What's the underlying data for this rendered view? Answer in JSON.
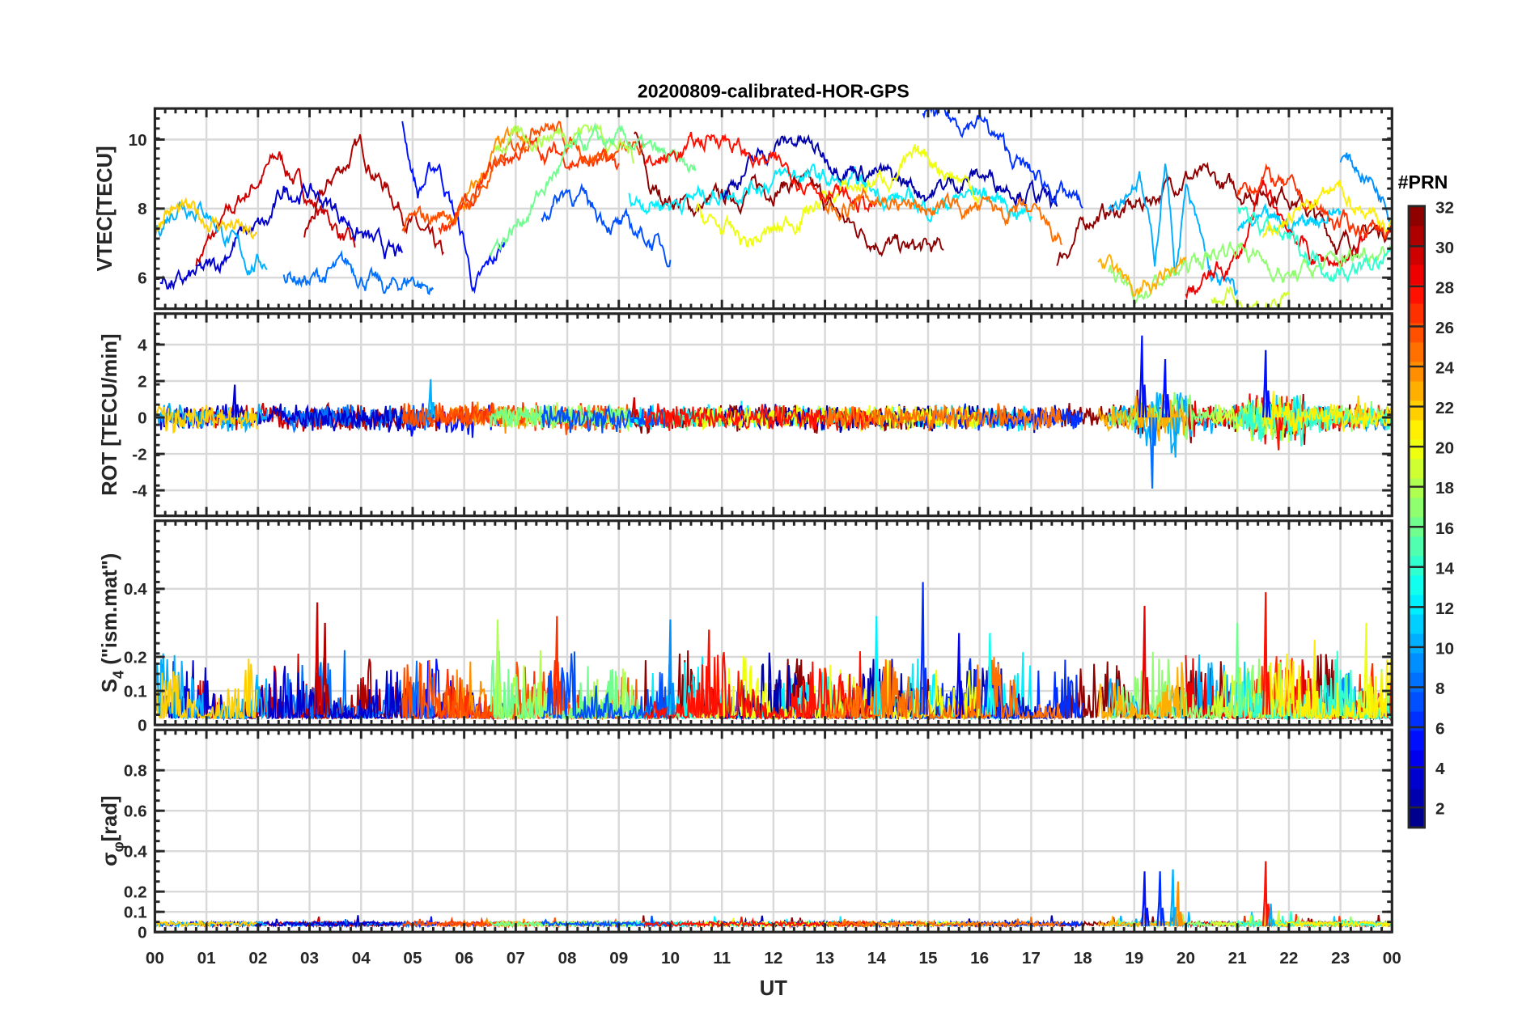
{
  "chart_data": {
    "type": "line",
    "title": "20200809-calibrated-HOR-GPS",
    "xlabel": "UT",
    "xlim": [
      0,
      24
    ],
    "x_tick_labels": [
      "00",
      "01",
      "02",
      "03",
      "04",
      "05",
      "06",
      "07",
      "08",
      "09",
      "10",
      "11",
      "12",
      "13",
      "14",
      "15",
      "16",
      "17",
      "18",
      "19",
      "20",
      "21",
      "22",
      "23",
      "00"
    ],
    "grid": true,
    "colorbar": {
      "label": "#PRN",
      "range": [
        1,
        32
      ],
      "colormap": "jet",
      "tick_labels": [
        "2",
        "4",
        "6",
        "8",
        "10",
        "12",
        "14",
        "16",
        "18",
        "20",
        "22",
        "24",
        "26",
        "28",
        "30",
        "32"
      ],
      "placement": "right"
    },
    "panels": [
      {
        "id": "vtec",
        "ylabel": "VTEC[TECU]",
        "ylim": [
          5.1,
          10.9
        ],
        "y_ticks": [
          6,
          8,
          10
        ],
        "y_tick_labels": [
          "6",
          "8",
          "10"
        ]
      },
      {
        "id": "rot",
        "ylabel": "ROT [TECU/min]",
        "ylim": [
          -5.4,
          5.7
        ],
        "y_ticks": [
          -4,
          -2,
          0,
          2,
          4
        ],
        "y_tick_labels": [
          "-4",
          "-2",
          "0",
          "2",
          "4"
        ]
      },
      {
        "id": "s4",
        "ylabel_main": "S",
        "ylabel_sub": "4",
        "ylabel_rest": " (\"ism.mat\")",
        "ylim": [
          0,
          0.6
        ],
        "y_ticks": [
          0,
          0.1,
          0.2,
          0.4
        ],
        "y_tick_labels": [
          "0",
          "0.1",
          "0.2",
          "0.4"
        ]
      },
      {
        "id": "sigma",
        "ylabel_main": "σ",
        "ylabel_sub": "φ",
        "ylabel_rest": "[rad]",
        "ylim": [
          0,
          1.0
        ],
        "y_ticks": [
          0,
          0.1,
          0.2,
          0.4,
          0.6,
          0.8
        ],
        "y_tick_labels": [
          "0",
          "0.1",
          "0.2",
          "0.4",
          "0.6",
          "0.8"
        ]
      }
    ],
    "vtec_series": [
      {
        "prn": 30,
        "points": [
          [
            0.8,
            6.5
          ],
          [
            1.3,
            7.5
          ],
          [
            1.8,
            8.5
          ],
          [
            2.4,
            9.5
          ],
          [
            3.0,
            8.3
          ],
          [
            3.5,
            7.5
          ],
          [
            3.9,
            6.7
          ]
        ]
      },
      {
        "prn": 31,
        "points": [
          [
            2.9,
            7.2
          ],
          [
            3.5,
            9.0
          ],
          [
            4.0,
            9.8
          ],
          [
            4.3,
            9.0
          ],
          [
            4.8,
            8.0
          ],
          [
            5.3,
            7.0
          ],
          [
            5.6,
            6.5
          ]
        ]
      },
      {
        "prn": 32,
        "points": [
          [
            9.3,
            10.3
          ],
          [
            9.6,
            8.5
          ],
          [
            10.5,
            8.0
          ],
          [
            11.5,
            8.5
          ],
          [
            12.5,
            8.8
          ],
          [
            13.5,
            7.5
          ],
          [
            14.5,
            6.8
          ],
          [
            15.3,
            6.8
          ]
        ]
      },
      {
        "prn": 32,
        "points": [
          [
            17.5,
            6.5
          ],
          [
            18.2,
            7.8
          ],
          [
            19.0,
            8.0
          ],
          [
            20.0,
            9.0
          ],
          [
            21.0,
            8.5
          ],
          [
            22.0,
            8.5
          ],
          [
            23.0,
            7.0
          ],
          [
            24.0,
            7.5
          ]
        ]
      },
      {
        "prn": 5,
        "points": [
          [
            4.8,
            10.4
          ],
          [
            5.1,
            8.5
          ],
          [
            5.5,
            9.3
          ],
          [
            6.0,
            7.0
          ],
          [
            6.2,
            5.6
          ],
          [
            6.8,
            7.0
          ]
        ]
      },
      {
        "prn": 8,
        "points": [
          [
            2.5,
            6.2
          ],
          [
            3.0,
            5.9
          ],
          [
            3.8,
            6.3
          ],
          [
            4.5,
            5.6
          ],
          [
            5.0,
            6.0
          ],
          [
            5.4,
            5.6
          ]
        ]
      },
      {
        "prn": 3,
        "points": [
          [
            0.1,
            6.0
          ],
          [
            0.5,
            5.8
          ],
          [
            1.2,
            6.3
          ],
          [
            1.6,
            7.2
          ],
          [
            2.2,
            7.5
          ],
          [
            2.5,
            8.5
          ],
          [
            3.0,
            8.5
          ],
          [
            3.5,
            8.0
          ],
          [
            4.2,
            7.0
          ],
          [
            4.8,
            6.5
          ]
        ]
      },
      {
        "prn": 10,
        "points": [
          [
            0.0,
            7.3
          ],
          [
            0.5,
            8.3
          ],
          [
            1.0,
            8.0
          ],
          [
            1.5,
            7.0
          ],
          [
            1.8,
            6.4
          ],
          [
            2.2,
            6.5
          ]
        ]
      },
      {
        "prn": 22,
        "points": [
          [
            0.0,
            7.2
          ],
          [
            0.2,
            8.0
          ],
          [
            1.5,
            7.5
          ],
          [
            2.0,
            7.0
          ]
        ]
      },
      {
        "prn": 24,
        "points": [
          [
            5.7,
            7.5
          ],
          [
            6.2,
            8.5
          ],
          [
            6.6,
            9.6
          ],
          [
            7.0,
            10.0
          ],
          [
            7.2,
            9.6
          ]
        ]
      },
      {
        "prn": 27,
        "points": [
          [
            5.5,
            7.5
          ],
          [
            6.2,
            8.2
          ],
          [
            6.6,
            9.2
          ],
          [
            7.2,
            9.8
          ],
          [
            8.0,
            9.5
          ],
          [
            8.5,
            9.3
          ],
          [
            9.0,
            9.2
          ]
        ]
      },
      {
        "prn": 26,
        "points": [
          [
            4.8,
            7.5
          ],
          [
            6.0,
            8.0
          ],
          [
            7.5,
            10.7
          ],
          [
            8.0,
            10.0
          ],
          [
            8.5,
            9.6
          ],
          [
            9.5,
            9.6
          ]
        ]
      },
      {
        "prn": 18,
        "points": [
          [
            6.6,
            9.9
          ],
          [
            7.5,
            10.1
          ],
          [
            8.5,
            10.4
          ],
          [
            9.3,
            9.5
          ]
        ]
      },
      {
        "prn": 16,
        "points": [
          [
            6.5,
            6.8
          ],
          [
            7.0,
            7.5
          ],
          [
            7.5,
            8.5
          ],
          [
            8.0,
            9.5
          ],
          [
            8.5,
            9.9
          ],
          [
            9.2,
            9.9
          ],
          [
            10.5,
            9.0
          ]
        ]
      },
      {
        "prn": 12,
        "points": [
          [
            9.2,
            8.3
          ],
          [
            10.0,
            8.2
          ],
          [
            11.0,
            8.5
          ],
          [
            12.5,
            9.0
          ],
          [
            14.0,
            8.5
          ],
          [
            15.0,
            8.0
          ],
          [
            16.0,
            8.5
          ],
          [
            17.0,
            7.8
          ]
        ]
      },
      {
        "prn": 7,
        "points": [
          [
            7.5,
            7.8
          ],
          [
            8.0,
            8.6
          ],
          [
            8.5,
            8.0
          ],
          [
            9.0,
            7.5
          ],
          [
            9.5,
            7.2
          ],
          [
            10.0,
            6.7
          ]
        ]
      },
      {
        "prn": 2,
        "points": [
          [
            11.0,
            8.5
          ],
          [
            12.0,
            9.8
          ],
          [
            12.5,
            10.0
          ],
          [
            13.0,
            9.5
          ],
          [
            14.0,
            9.0
          ],
          [
            15.0,
            8.5
          ],
          [
            16.0,
            9.0
          ],
          [
            17.0,
            8.5
          ],
          [
            17.5,
            8.0
          ]
        ]
      },
      {
        "prn": 6,
        "points": [
          [
            14.9,
            10.8
          ],
          [
            15.5,
            10.5
          ],
          [
            16.0,
            10.6
          ],
          [
            16.6,
            9.5
          ],
          [
            17.0,
            9.0
          ],
          [
            17.5,
            8.5
          ],
          [
            18.0,
            8.0
          ]
        ]
      },
      {
        "prn": 20,
        "points": [
          [
            10.5,
            7.8
          ],
          [
            11.5,
            7.0
          ],
          [
            12.0,
            7.3
          ],
          [
            13.0,
            8.3
          ],
          [
            14.0,
            8.8
          ],
          [
            15.0,
            9.5
          ],
          [
            16.0,
            8.5
          ]
        ]
      },
      {
        "prn": 28,
        "points": [
          [
            9.5,
            9.2
          ],
          [
            10.0,
            9.5
          ],
          [
            11.0,
            10.2
          ],
          [
            11.5,
            9.5
          ],
          [
            12.5,
            9.0
          ],
          [
            13.5,
            8.2
          ],
          [
            14.0,
            8.0
          ]
        ]
      },
      {
        "prn": 11,
        "points": [
          [
            21.0,
            7.5
          ],
          [
            22.0,
            7.5
          ],
          [
            23.0,
            8.0
          ]
        ]
      },
      {
        "prn": 9,
        "points": [
          [
            23.0,
            9.5
          ],
          [
            23.5,
            9.0
          ],
          [
            24.0,
            8.0
          ]
        ]
      },
      {
        "prn": 10,
        "points": [
          [
            18.5,
            8.0
          ],
          [
            19.1,
            9.0
          ],
          [
            19.4,
            6.5
          ],
          [
            19.6,
            9.5
          ],
          [
            19.8,
            6.2
          ],
          [
            20.0,
            8.5
          ],
          [
            20.5,
            6.0
          ],
          [
            21.0,
            5.5
          ]
        ]
      },
      {
        "prn": 29,
        "points": [
          [
            20.0,
            5.5
          ],
          [
            21.0,
            6.5
          ],
          [
            21.5,
            8.5
          ],
          [
            22.0,
            7.5
          ],
          [
            22.5,
            6.5
          ],
          [
            23.0,
            6.5
          ],
          [
            23.5,
            7.0
          ]
        ]
      },
      {
        "prn": 27,
        "points": [
          [
            21.0,
            8.5
          ],
          [
            21.5,
            9.0
          ],
          [
            22.0,
            8.5
          ],
          [
            23.0,
            7.5
          ],
          [
            24.0,
            7.5
          ]
        ]
      },
      {
        "prn": 17,
        "points": [
          [
            18.5,
            6.0
          ],
          [
            19.0,
            5.5
          ],
          [
            20.0,
            6.3
          ],
          [
            21.0,
            7.0
          ],
          [
            22.0,
            6.0
          ],
          [
            23.0,
            6.5
          ],
          [
            24.0,
            7.0
          ]
        ]
      },
      {
        "prn": 19,
        "points": [
          [
            20.5,
            5.5
          ],
          [
            21.5,
            5.2
          ],
          [
            22.0,
            5.3
          ]
        ]
      },
      {
        "prn": 14,
        "points": [
          [
            21.0,
            8.0
          ],
          [
            22.0,
            7.0
          ],
          [
            23.0,
            6.2
          ],
          [
            24.0,
            6.5
          ]
        ]
      },
      {
        "prn": 25,
        "points": [
          [
            13.0,
            8.0
          ],
          [
            14.0,
            8.3
          ],
          [
            15.0,
            8.0
          ],
          [
            16.0,
            8.0
          ],
          [
            17.0,
            7.8
          ],
          [
            17.6,
            7.0
          ]
        ]
      },
      {
        "prn": 23,
        "points": [
          [
            18.3,
            6.5
          ],
          [
            19.0,
            5.6
          ],
          [
            19.5,
            5.8
          ],
          [
            20.0,
            6.5
          ]
        ]
      },
      {
        "prn": 21,
        "points": [
          [
            21.5,
            7.0
          ],
          [
            22.0,
            7.8
          ],
          [
            23.0,
            8.5
          ],
          [
            24.0,
            7.5
          ]
        ]
      }
    ],
    "rot_spikes": [
      [
        1.55,
        1.8,
        3
      ],
      [
        5.35,
        2.1,
        10
      ],
      [
        9.3,
        1.1,
        30
      ],
      [
        19.15,
        4.5,
        5
      ],
      [
        19.35,
        -3.9,
        8
      ],
      [
        19.6,
        3.2,
        5
      ],
      [
        19.8,
        -2.2,
        10
      ],
      [
        21.55,
        3.7,
        5
      ],
      [
        21.8,
        -1.8,
        28
      ],
      [
        23.35,
        1.2,
        22
      ]
    ],
    "s4_spikes": [
      [
        3.15,
        0.36,
        30
      ],
      [
        3.3,
        0.3,
        31
      ],
      [
        6.65,
        0.31,
        18
      ],
      [
        7.8,
        0.32,
        27
      ],
      [
        10.0,
        0.31,
        9
      ],
      [
        10.75,
        0.28,
        28
      ],
      [
        14.0,
        0.32,
        12
      ],
      [
        14.9,
        0.42,
        6
      ],
      [
        15.6,
        0.27,
        4
      ],
      [
        16.2,
        0.27,
        13
      ],
      [
        19.2,
        0.35,
        29
      ],
      [
        21.55,
        0.39,
        28
      ],
      [
        21.0,
        0.3,
        16
      ],
      [
        23.5,
        0.3,
        20
      ],
      [
        22.5,
        0.25,
        21
      ]
    ],
    "sigma_spikes": [
      [
        19.2,
        0.3,
        5
      ],
      [
        19.5,
        0.3,
        6
      ],
      [
        19.75,
        0.31,
        10
      ],
      [
        19.85,
        0.25,
        24
      ],
      [
        21.55,
        0.35,
        28
      ],
      [
        21.65,
        0.14,
        10
      ]
    ]
  }
}
